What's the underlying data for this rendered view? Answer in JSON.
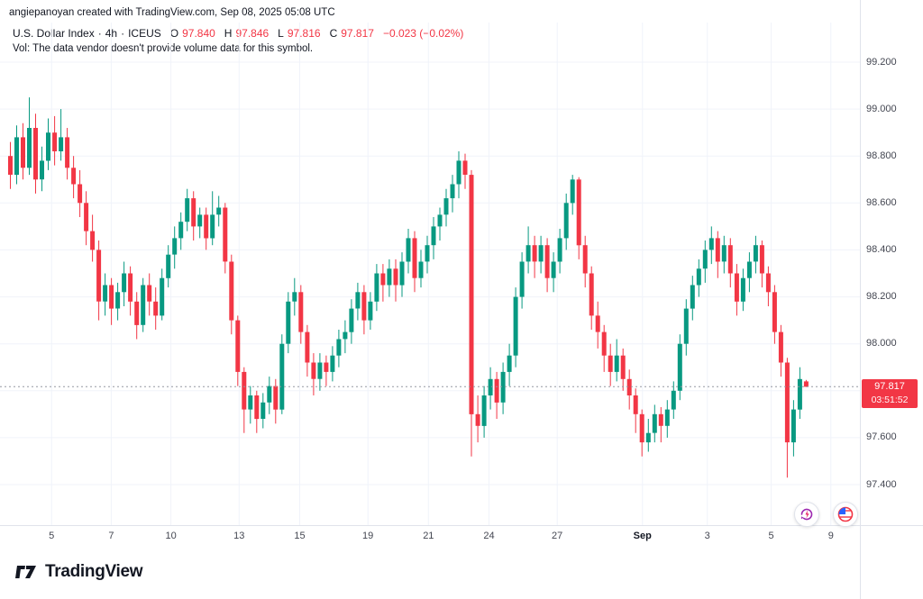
{
  "attribution": "angiepanoyan created with TradingView.com, Sep 08, 2025 05:08 UTC",
  "legend": {
    "symbol_title": "U.S. Dollar Index",
    "sep1": "·",
    "interval": "4h",
    "sep2": "·",
    "exchange": "ICEUS",
    "o_label": "O",
    "o_value": "97.840",
    "h_label": "H",
    "h_value": "97.846",
    "l_label": "L",
    "l_value": "97.816",
    "c_label": "C",
    "c_value": "97.817",
    "change": "−0.023 (−0.02%)"
  },
  "vol_note": "Vol: The data vendor doesn't provide volume data for this symbol.",
  "price_label": {
    "price": "97.817",
    "countdown": "03:51:52"
  },
  "footer": {
    "brand": "TradingView"
  },
  "colors": {
    "up": "#089981",
    "down": "#f23645",
    "grid": "#f0f3fa",
    "axis_line": "#e0e3eb",
    "axis_text": "#434651",
    "price_line": "#9598a1",
    "badge": "#f23645"
  },
  "chart_data": {
    "type": "candlestick",
    "title": "U.S. Dollar Index · 4h · ICEUS",
    "interval": "4h",
    "last_price": 97.817,
    "y_axis": {
      "min": 97.4,
      "max": 99.2,
      "grid_levels": [
        99.2,
        99.0,
        98.8,
        98.6,
        98.4,
        98.2,
        98.0,
        97.8,
        97.6,
        97.4
      ],
      "labels": [
        {
          "value": 99.2,
          "label": "99.200"
        },
        {
          "value": 99.0,
          "label": "99.000"
        },
        {
          "value": 98.8,
          "label": "98.800"
        },
        {
          "value": 98.6,
          "label": "98.600"
        },
        {
          "value": 98.4,
          "label": "98.400"
        },
        {
          "value": 98.2,
          "label": "98.200"
        },
        {
          "value": 98.0,
          "label": "98.000"
        },
        {
          "value": 97.6,
          "label": "97.600"
        },
        {
          "value": 97.4,
          "label": "97.400"
        }
      ]
    },
    "x_ticks": [
      {
        "label": "5",
        "pos": 0.052,
        "bold": false
      },
      {
        "label": "7",
        "pos": 0.122,
        "bold": false
      },
      {
        "label": "10",
        "pos": 0.192,
        "bold": false
      },
      {
        "label": "13",
        "pos": 0.272,
        "bold": false
      },
      {
        "label": "15",
        "pos": 0.343,
        "bold": false
      },
      {
        "label": "19",
        "pos": 0.423,
        "bold": false
      },
      {
        "label": "21",
        "pos": 0.494,
        "bold": false
      },
      {
        "label": "24",
        "pos": 0.565,
        "bold": false
      },
      {
        "label": "27",
        "pos": 0.645,
        "bold": false
      },
      {
        "label": "Sep",
        "pos": 0.745,
        "bold": true
      },
      {
        "label": "3",
        "pos": 0.821,
        "bold": false
      },
      {
        "label": "5",
        "pos": 0.896,
        "bold": false
      },
      {
        "label": "9",
        "pos": 0.966,
        "bold": false
      }
    ],
    "slots": 135,
    "candles": [
      [
        98.8,
        98.86,
        98.66,
        98.72
      ],
      [
        98.72,
        98.93,
        98.68,
        98.88
      ],
      [
        98.88,
        98.94,
        98.7,
        98.75
      ],
      [
        98.75,
        99.05,
        98.72,
        98.92
      ],
      [
        98.92,
        98.98,
        98.64,
        98.7
      ],
      [
        98.7,
        98.84,
        98.65,
        98.78
      ],
      [
        98.78,
        98.96,
        98.74,
        98.9
      ],
      [
        98.9,
        98.97,
        98.76,
        98.82
      ],
      [
        98.82,
        99.0,
        98.78,
        98.88
      ],
      [
        98.88,
        98.92,
        98.7,
        98.75
      ],
      [
        98.75,
        98.8,
        98.62,
        98.68
      ],
      [
        98.68,
        98.74,
        98.54,
        98.6
      ],
      [
        98.6,
        98.65,
        98.42,
        98.48
      ],
      [
        98.48,
        98.55,
        98.35,
        98.4
      ],
      [
        98.4,
        98.44,
        98.1,
        98.18
      ],
      [
        98.18,
        98.3,
        98.12,
        98.25
      ],
      [
        98.25,
        98.28,
        98.08,
        98.15
      ],
      [
        98.15,
        98.26,
        98.1,
        98.22
      ],
      [
        98.22,
        98.35,
        98.16,
        98.3
      ],
      [
        98.3,
        98.33,
        98.12,
        98.18
      ],
      [
        98.18,
        98.22,
        98.02,
        98.08
      ],
      [
        98.08,
        98.28,
        98.05,
        98.25
      ],
      [
        98.25,
        98.3,
        98.12,
        98.18
      ],
      [
        98.18,
        98.24,
        98.06,
        98.12
      ],
      [
        98.12,
        98.32,
        98.1,
        98.28
      ],
      [
        98.28,
        98.42,
        98.24,
        98.38
      ],
      [
        98.38,
        98.5,
        98.32,
        98.45
      ],
      [
        98.45,
        98.56,
        98.4,
        98.52
      ],
      [
        98.52,
        98.66,
        98.48,
        98.62
      ],
      [
        98.62,
        98.65,
        98.44,
        98.5
      ],
      [
        98.5,
        98.58,
        98.45,
        98.55
      ],
      [
        98.55,
        98.58,
        98.4,
        98.45
      ],
      [
        98.45,
        98.65,
        98.42,
        98.55
      ],
      [
        98.55,
        98.63,
        98.5,
        98.58
      ],
      [
        98.58,
        98.6,
        98.3,
        98.35
      ],
      [
        98.35,
        98.38,
        98.04,
        98.1
      ],
      [
        98.1,
        98.12,
        97.82,
        97.88
      ],
      [
        97.88,
        97.9,
        97.62,
        97.72
      ],
      [
        97.72,
        97.82,
        97.66,
        97.78
      ],
      [
        97.78,
        97.8,
        97.62,
        97.68
      ],
      [
        97.68,
        97.79,
        97.64,
        97.75
      ],
      [
        97.75,
        97.86,
        97.7,
        97.82
      ],
      [
        97.82,
        97.85,
        97.66,
        97.72
      ],
      [
        97.72,
        98.04,
        97.7,
        98.0
      ],
      [
        98.0,
        98.22,
        97.96,
        98.18
      ],
      [
        98.18,
        98.28,
        98.12,
        98.22
      ],
      [
        98.22,
        98.25,
        98.0,
        98.05
      ],
      [
        98.05,
        98.08,
        97.86,
        97.92
      ],
      [
        97.92,
        97.96,
        97.78,
        97.85
      ],
      [
        97.85,
        97.96,
        97.8,
        97.92
      ],
      [
        97.92,
        97.95,
        97.82,
        97.88
      ],
      [
        97.88,
        97.99,
        97.84,
        97.95
      ],
      [
        97.95,
        98.06,
        97.9,
        98.02
      ],
      [
        98.02,
        98.1,
        97.96,
        98.05
      ],
      [
        98.05,
        98.19,
        98.0,
        98.15
      ],
      [
        98.15,
        98.26,
        98.1,
        98.22
      ],
      [
        98.22,
        98.25,
        98.04,
        98.1
      ],
      [
        98.1,
        98.22,
        98.06,
        98.18
      ],
      [
        98.18,
        98.34,
        98.14,
        98.3
      ],
      [
        98.3,
        98.34,
        98.18,
        98.25
      ],
      [
        98.25,
        98.36,
        98.2,
        98.32
      ],
      [
        98.32,
        98.36,
        98.18,
        98.25
      ],
      [
        98.25,
        98.39,
        98.2,
        98.35
      ],
      [
        98.35,
        98.49,
        98.3,
        98.45
      ],
      [
        98.45,
        98.48,
        98.22,
        98.28
      ],
      [
        98.28,
        98.4,
        98.24,
        98.35
      ],
      [
        98.35,
        98.46,
        98.3,
        98.42
      ],
      [
        98.42,
        98.54,
        98.36,
        98.5
      ],
      [
        98.5,
        98.58,
        98.44,
        98.55
      ],
      [
        98.55,
        98.66,
        98.5,
        98.62
      ],
      [
        98.62,
        98.72,
        98.56,
        98.68
      ],
      [
        98.68,
        98.82,
        98.62,
        98.78
      ],
      [
        98.78,
        98.81,
        98.66,
        98.72
      ],
      [
        98.72,
        98.74,
        97.52,
        97.7
      ],
      [
        97.7,
        97.78,
        97.58,
        97.65
      ],
      [
        97.65,
        97.82,
        97.6,
        97.78
      ],
      [
        97.78,
        97.9,
        97.72,
        97.85
      ],
      [
        97.85,
        97.88,
        97.68,
        97.75
      ],
      [
        97.75,
        97.92,
        97.7,
        97.88
      ],
      [
        97.88,
        98.0,
        97.82,
        97.95
      ],
      [
        97.95,
        98.24,
        97.9,
        98.2
      ],
      [
        98.2,
        98.39,
        98.15,
        98.35
      ],
      [
        98.35,
        98.5,
        98.3,
        98.42
      ],
      [
        98.42,
        98.46,
        98.28,
        98.35
      ],
      [
        98.35,
        98.46,
        98.3,
        98.42
      ],
      [
        98.42,
        98.45,
        98.22,
        98.28
      ],
      [
        98.28,
        98.39,
        98.22,
        98.35
      ],
      [
        98.35,
        98.49,
        98.3,
        98.45
      ],
      [
        98.45,
        98.64,
        98.4,
        98.6
      ],
      [
        98.6,
        98.72,
        98.55,
        98.7
      ],
      [
        98.7,
        98.71,
        98.36,
        98.42
      ],
      [
        98.42,
        98.46,
        98.24,
        98.3
      ],
      [
        98.3,
        98.33,
        98.06,
        98.12
      ],
      [
        98.12,
        98.18,
        97.98,
        98.05
      ],
      [
        98.05,
        98.08,
        97.88,
        97.95
      ],
      [
        97.95,
        98.0,
        97.82,
        97.88
      ],
      [
        97.88,
        98.02,
        97.84,
        97.95
      ],
      [
        97.95,
        97.98,
        97.8,
        97.85
      ],
      [
        97.85,
        97.89,
        97.72,
        97.78
      ],
      [
        97.78,
        97.81,
        97.62,
        97.7
      ],
      [
        97.7,
        97.72,
        97.52,
        97.58
      ],
      [
        97.58,
        97.68,
        97.54,
        97.62
      ],
      [
        97.62,
        97.74,
        97.58,
        97.7
      ],
      [
        97.7,
        97.73,
        97.58,
        97.65
      ],
      [
        97.65,
        97.76,
        97.6,
        97.72
      ],
      [
        97.72,
        97.84,
        97.68,
        97.8
      ],
      [
        97.8,
        98.04,
        97.76,
        98.0
      ],
      [
        98.0,
        98.19,
        97.95,
        98.15
      ],
      [
        98.15,
        98.29,
        98.1,
        98.25
      ],
      [
        98.25,
        98.36,
        98.2,
        98.32
      ],
      [
        98.32,
        98.44,
        98.26,
        98.4
      ],
      [
        98.4,
        98.5,
        98.34,
        98.45
      ],
      [
        98.45,
        98.48,
        98.28,
        98.35
      ],
      [
        98.35,
        98.46,
        98.3,
        98.42
      ],
      [
        98.42,
        98.45,
        98.24,
        98.3
      ],
      [
        98.3,
        98.34,
        98.12,
        98.18
      ],
      [
        98.18,
        98.32,
        98.14,
        98.28
      ],
      [
        98.28,
        98.39,
        98.22,
        98.35
      ],
      [
        98.35,
        98.46,
        98.3,
        98.42
      ],
      [
        98.42,
        98.44,
        98.24,
        98.3
      ],
      [
        98.3,
        98.33,
        98.16,
        98.22
      ],
      [
        98.22,
        98.25,
        98.0,
        98.05
      ],
      [
        98.05,
        98.08,
        97.86,
        97.92
      ],
      [
        97.92,
        97.94,
        97.43,
        97.58
      ],
      [
        97.58,
        97.76,
        97.52,
        97.72
      ],
      [
        97.72,
        97.9,
        97.68,
        97.85
      ],
      [
        97.84,
        97.846,
        97.816,
        97.817
      ]
    ]
  }
}
